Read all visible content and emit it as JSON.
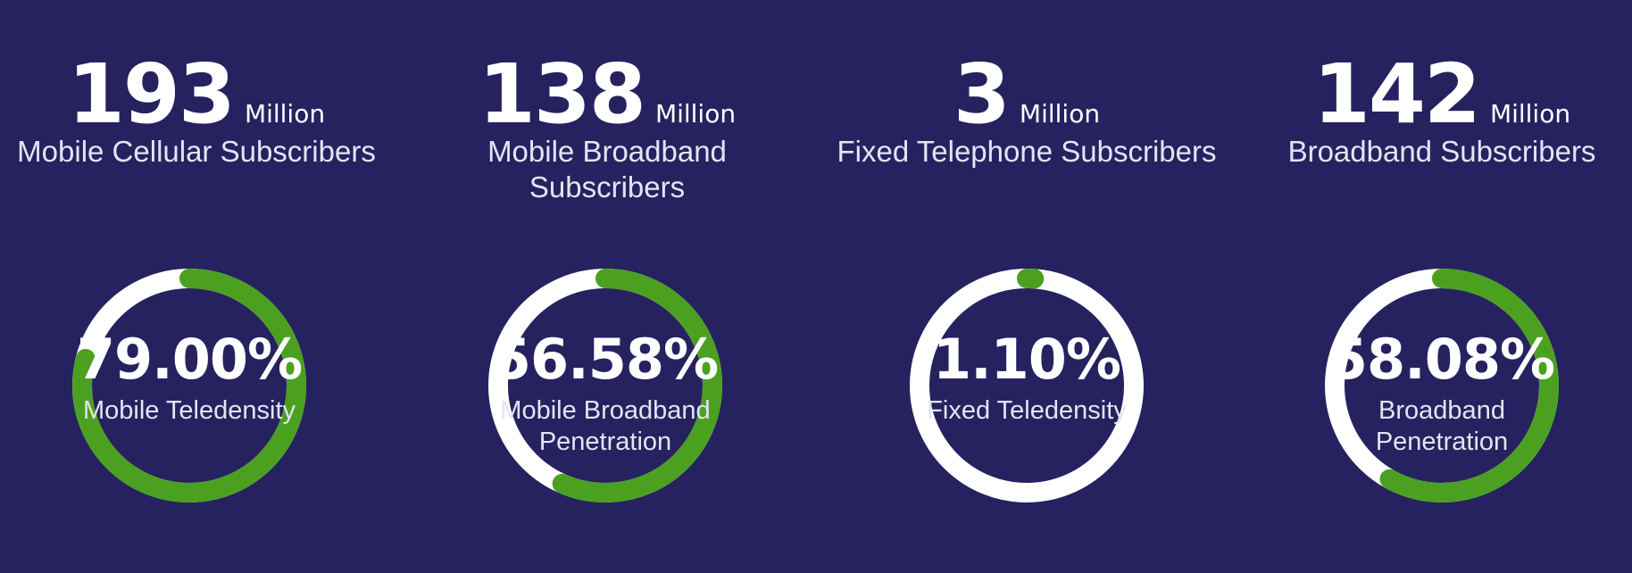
{
  "colors": {
    "background": "#262260",
    "track": "#ffffff",
    "progress": "#4ba11f",
    "text": "#ffffff"
  },
  "stats": [
    {
      "value": "193",
      "unit": "Million",
      "label": "Mobile Cellular Subscribers",
      "percent": "79.00%",
      "progress": 0.79,
      "caption": "Mobile Teledensity"
    },
    {
      "value": "138",
      "unit": "Million",
      "label": "Mobile Broadband Subscribers",
      "percent": "56.58%",
      "progress": 0.5658,
      "caption": "Mobile Broadband Penetration"
    },
    {
      "value": "3",
      "unit": "Million",
      "label": "Fixed Telephone Subscribers",
      "percent": "1.10%",
      "progress": 0.011,
      "caption": "Fixed Teledensity"
    },
    {
      "value": "142",
      "unit": "Million",
      "label": "Broadband Subscribers",
      "percent": "58.08%",
      "progress": 0.5808,
      "caption": "Broadband Penetration"
    }
  ]
}
